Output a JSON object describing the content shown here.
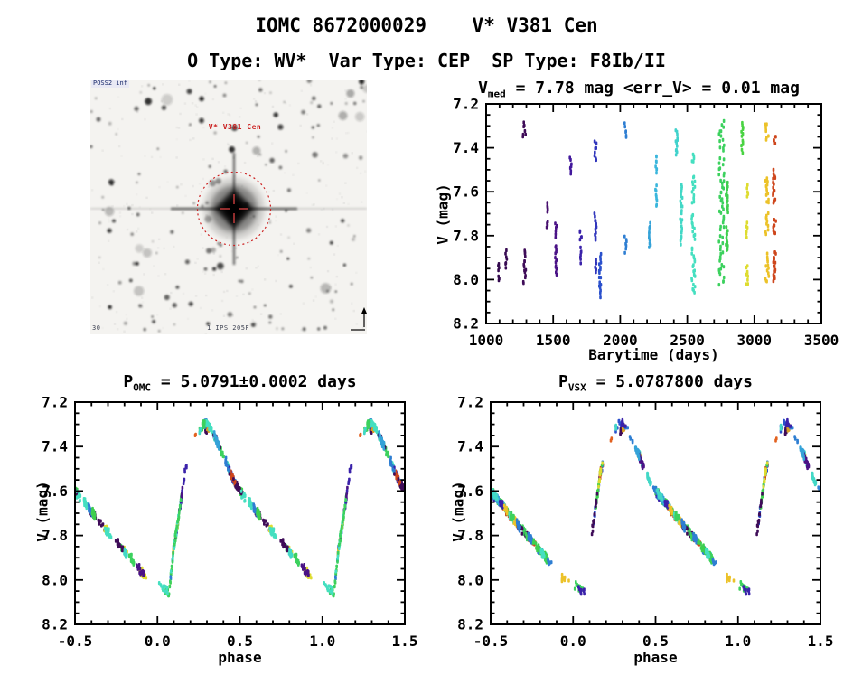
{
  "header": {
    "title": "IOMC 8672000029    V* V381 Cen",
    "subtitle": "O Type: WV*  Var Type: CEP  SP Type: F8Ib/II"
  },
  "finder": {
    "survey_label": "POSS2 inf",
    "target_label": "V* V381 Cen",
    "scale_label": "30",
    "footer_label": "1 IPS 205F",
    "aperture_circle_color": "#cc2222",
    "annotation_color": "#cc2020"
  },
  "chart_data": [
    {
      "id": "timeseries",
      "type": "scatter",
      "title": {
        "base": "V",
        "sub": "med",
        "rest": " = 7.78 mag <err_V> = 0.01 mag"
      },
      "xlabel": "Barytime (days)",
      "ylabel": "V (mag)",
      "xlim": [
        1000,
        3500
      ],
      "ylim": [
        7.2,
        8.2
      ],
      "y_inverted": true,
      "xtick_values": [
        1000,
        1500,
        2000,
        2500,
        3000,
        3500
      ],
      "xtick_labels": [
        "1000",
        "1500",
        "2000",
        "2500",
        "3000",
        "3500"
      ],
      "xminor_step": 100,
      "ytick_values": [
        7.2,
        7.4,
        7.6,
        7.8,
        8.0,
        8.2
      ],
      "ytick_labels": [
        "7.2",
        "7.4",
        "7.6",
        "7.8",
        "8.0",
        "8.2"
      ],
      "yminor_step": 0.05,
      "point_seed": 42,
      "clusters": [
        {
          "t": 1095,
          "w": 14,
          "color": "#33094e",
          "v_segments": [
            [
              7.92,
              7.96
            ],
            [
              7.98,
              8.01
            ]
          ]
        },
        {
          "t": 1150,
          "w": 12,
          "color": "#370a52",
          "v_segments": [
            [
              7.87,
              7.95
            ]
          ]
        },
        {
          "t": 1285,
          "w": 22,
          "color": "#3f0c58",
          "v_segments": [
            [
              7.28,
              7.36
            ],
            [
              7.86,
              8.02
            ]
          ]
        },
        {
          "t": 1455,
          "w": 12,
          "color": "#470f6e",
          "v_segments": [
            [
              7.65,
              7.7
            ],
            [
              7.73,
              7.77
            ]
          ]
        },
        {
          "t": 1520,
          "w": 16,
          "color": "#4a1286",
          "v_segments": [
            [
              7.74,
              7.81
            ],
            [
              7.84,
              7.98
            ]
          ]
        },
        {
          "t": 1630,
          "w": 12,
          "color": "#42189c",
          "v_segments": [
            [
              7.44,
              7.52
            ]
          ]
        },
        {
          "t": 1705,
          "w": 14,
          "color": "#3a22aa",
          "v_segments": [
            [
              7.77,
              7.83
            ],
            [
              7.85,
              7.93
            ]
          ]
        },
        {
          "t": 1815,
          "w": 16,
          "color": "#3136bc",
          "v_segments": [
            [
              7.37,
              7.46
            ],
            [
              7.7,
              7.82
            ],
            [
              7.9,
              7.97
            ]
          ]
        },
        {
          "t": 1850,
          "w": 14,
          "color": "#2a50cc",
          "v_segments": [
            [
              7.88,
              8.08
            ]
          ]
        },
        {
          "t": 2040,
          "w": 16,
          "color": "#2e7ed2",
          "v_segments": [
            [
              7.29,
              7.36
            ],
            [
              7.8,
              7.88
            ]
          ]
        },
        {
          "t": 2220,
          "w": 14,
          "color": "#34a2d8",
          "v_segments": [
            [
              7.74,
              7.86
            ]
          ]
        },
        {
          "t": 2270,
          "w": 14,
          "color": "#3ab6dc",
          "v_segments": [
            [
              7.43,
              7.52
            ],
            [
              7.57,
              7.67
            ]
          ]
        },
        {
          "t": 2420,
          "w": 14,
          "color": "#40d2cc",
          "v_segments": [
            [
              7.31,
              7.44
            ]
          ]
        },
        {
          "t": 2455,
          "w": 16,
          "color": "#42d8c6",
          "v_segments": [
            [
              7.56,
              7.7
            ],
            [
              7.72,
              7.84
            ]
          ]
        },
        {
          "t": 2545,
          "w": 26,
          "color": "#45dfc0",
          "v_segments": [
            [
              7.42,
              7.47
            ],
            [
              7.52,
              7.66
            ],
            [
              7.7,
              7.82
            ],
            [
              7.85,
              8.07
            ]
          ]
        },
        {
          "t": 2755,
          "w": 40,
          "color": "#3cd15e",
          "v_segments": [
            [
              7.28,
              7.42
            ],
            [
              7.44,
              7.78
            ],
            [
              7.8,
              8.03
            ]
          ]
        },
        {
          "t": 2795,
          "w": 16,
          "color": "#3ecf4e",
          "v_segments": [
            [
              7.55,
              7.7
            ],
            [
              7.76,
              7.88
            ]
          ]
        },
        {
          "t": 2910,
          "w": 14,
          "color": "#4ad343",
          "v_segments": [
            [
              7.28,
              7.42
            ]
          ]
        },
        {
          "t": 2945,
          "w": 16,
          "color": "#dedc30",
          "v_segments": [
            [
              7.57,
              7.62
            ],
            [
              7.74,
              7.81
            ],
            [
              7.93,
              8.03
            ]
          ]
        },
        {
          "t": 3095,
          "w": 26,
          "color": "#ecc229",
          "v_segments": [
            [
              7.28,
              7.37
            ],
            [
              7.53,
              7.66
            ],
            [
              7.69,
              7.8
            ],
            [
              7.88,
              8.02
            ]
          ]
        },
        {
          "t": 3150,
          "w": 22,
          "color": "#ce461c",
          "v_segments": [
            [
              7.34,
              7.38
            ],
            [
              7.5,
              7.66
            ],
            [
              7.72,
              7.8
            ],
            [
              7.87,
              8.01
            ]
          ]
        }
      ]
    },
    {
      "id": "phase_omc",
      "type": "scatter",
      "title": {
        "base": "P",
        "sub": "OMC",
        "rest": " = 5.0791±0.0002 days"
      },
      "xlabel": "phase",
      "ylabel": "V (mag)",
      "xlim": [
        -0.5,
        1.5
      ],
      "ylim": [
        7.2,
        8.2
      ],
      "y_inverted": true,
      "xtick_values": [
        -0.5,
        0.0,
        0.5,
        1.0,
        1.5
      ],
      "xtick_labels": [
        "-0.5",
        "0.0",
        "0.5",
        "1.0",
        "1.5"
      ],
      "xminor_step": 0.1,
      "ytick_values": [
        7.2,
        7.4,
        7.6,
        7.8,
        8.0,
        8.2
      ],
      "ytick_labels": [
        "7.2",
        "7.4",
        "7.6",
        "7.8",
        "8.0",
        "8.2"
      ],
      "yminor_step": 0.05,
      "point_seed": 101,
      "visits": 50,
      "folded_curve_phase_v": [
        [
          0.0,
          8.01
        ],
        [
          0.04,
          8.04
        ],
        [
          0.07,
          8.06
        ],
        [
          0.1,
          7.85
        ],
        [
          0.13,
          7.71
        ],
        [
          0.165,
          7.52
        ],
        [
          0.22,
          7.37
        ],
        [
          0.27,
          7.31
        ],
        [
          0.3,
          7.29
        ],
        [
          0.34,
          7.34
        ],
        [
          0.4,
          7.44
        ],
        [
          0.46,
          7.55
        ],
        [
          0.5,
          7.6
        ],
        [
          0.58,
          7.67
        ],
        [
          0.65,
          7.74
        ],
        [
          0.72,
          7.8
        ],
        [
          0.8,
          7.87
        ],
        [
          0.87,
          7.93
        ],
        [
          0.93,
          7.99
        ],
        [
          1.0,
          8.01
        ]
      ],
      "rise_gap_phase": [
        0.18,
        0.255
      ],
      "extra_clumps": [
        {
          "phase": 0.297,
          "v": 7.325,
          "color": "#3f0c58",
          "n": 9,
          "width": 0.014
        },
        {
          "phase": 0.307,
          "v": 7.318,
          "color": "#d8a026",
          "n": 8,
          "width": 0.012
        },
        {
          "phase": 0.232,
          "v": 7.36,
          "color": "#e2611f",
          "n": 2,
          "width": 0.01
        }
      ],
      "colors": [
        "#3f0c58",
        "#4a1286",
        "#3a22aa",
        "#2a50cc",
        "#2e7ed2",
        "#34a2d8",
        "#42d8c6",
        "#45dfc0",
        "#3ecf4e",
        "#3cd15e",
        "#dedc30",
        "#ecc229",
        "#ce461c"
      ],
      "color_weights": [
        1.0,
        0.7,
        0.7,
        0.9,
        0.8,
        0.8,
        1.6,
        1.6,
        2.2,
        2.2,
        1.0,
        1.2,
        1.2
      ]
    },
    {
      "id": "phase_vsx",
      "type": "scatter",
      "title": {
        "base": "P",
        "sub": "VSX",
        "rest": " = 5.0787800 days"
      },
      "xlabel": "phase",
      "ylabel": "V (mag)",
      "xlim": [
        -0.5,
        1.5
      ],
      "ylim": [
        7.2,
        8.2
      ],
      "y_inverted": true,
      "xtick_values": [
        -0.5,
        0.0,
        0.5,
        1.0,
        1.5
      ],
      "xtick_labels": [
        "-0.5",
        "0.0",
        "0.5",
        "1.0",
        "1.5"
      ],
      "xminor_step": 0.1,
      "ytick_values": [
        7.2,
        7.4,
        7.6,
        7.8,
        8.0,
        8.2
      ],
      "ytick_labels": [
        "7.2",
        "7.4",
        "7.6",
        "7.8",
        "8.0",
        "8.2"
      ],
      "yminor_step": 0.05,
      "point_seed": 202,
      "visits": 50,
      "folded_curve_phase_v": [
        [
          0.0,
          8.01
        ],
        [
          0.04,
          8.04
        ],
        [
          0.07,
          8.06
        ],
        [
          0.1,
          7.85
        ],
        [
          0.13,
          7.71
        ],
        [
          0.165,
          7.52
        ],
        [
          0.22,
          7.37
        ],
        [
          0.27,
          7.31
        ],
        [
          0.3,
          7.29
        ],
        [
          0.34,
          7.34
        ],
        [
          0.4,
          7.44
        ],
        [
          0.46,
          7.55
        ],
        [
          0.5,
          7.6
        ],
        [
          0.58,
          7.67
        ],
        [
          0.65,
          7.74
        ],
        [
          0.72,
          7.8
        ],
        [
          0.8,
          7.87
        ],
        [
          0.87,
          7.93
        ],
        [
          0.93,
          7.99
        ],
        [
          1.0,
          8.01
        ]
      ],
      "rise_gap_phase": [
        0.18,
        0.255
      ],
      "extra_clumps": [
        {
          "phase": 0.292,
          "v": 7.33,
          "color": "#3f0c58",
          "n": 10,
          "width": 0.014
        },
        {
          "phase": 0.305,
          "v": 7.315,
          "color": "#d8a026",
          "n": 8,
          "width": 0.012
        },
        {
          "phase": 0.23,
          "v": 7.36,
          "color": "#e2611f",
          "n": 2,
          "width": 0.01
        }
      ],
      "colors": [
        "#3f0c58",
        "#4a1286",
        "#3a22aa",
        "#2a50cc",
        "#2e7ed2",
        "#34a2d8",
        "#42d8c6",
        "#45dfc0",
        "#3ecf4e",
        "#3cd15e",
        "#dedc30",
        "#ecc229",
        "#ce461c"
      ],
      "color_weights": [
        1.0,
        0.7,
        0.7,
        0.9,
        0.8,
        0.8,
        1.6,
        1.6,
        2.2,
        2.2,
        1.0,
        1.2,
        1.2
      ]
    }
  ]
}
